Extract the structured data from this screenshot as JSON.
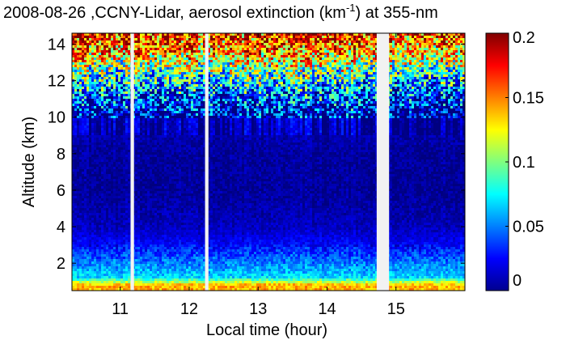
{
  "chart_data": {
    "type": "heatmap",
    "title_date": "2008-08-26",
    "title_main": " ,CCNY-Lidar, aerosol extinction (km",
    "title_sup": "-1",
    "title_tail": ") at 355-nm",
    "xlabel": "Local time (hour)",
    "ylabel": "Altitude (km)",
    "xlim": [
      10.3,
      16.0
    ],
    "ylim": [
      0.5,
      14.6
    ],
    "xticks": [
      11,
      12,
      13,
      14,
      15
    ],
    "yticks": [
      2,
      4,
      6,
      8,
      10,
      12,
      14
    ],
    "colorbar": {
      "range": [
        0,
        0.2
      ],
      "ticks": [
        0,
        0.05,
        0.1,
        0.15,
        0.2
      ],
      "tick_labels": [
        "0",
        "0.05",
        "0.1",
        "0.15",
        "0.2"
      ],
      "colormap": "jet"
    },
    "data_gaps_hours": [
      [
        11.15,
        11.2
      ],
      [
        12.23,
        12.28
      ],
      [
        14.72,
        14.9
      ]
    ],
    "profile": [
      {
        "altitude_km": 0.8,
        "extinction": 0.14
      },
      {
        "altitude_km": 1.2,
        "extinction": 0.07
      },
      {
        "altitude_km": 2.0,
        "extinction": 0.05
      },
      {
        "altitude_km": 3.0,
        "extinction": 0.025
      },
      {
        "altitude_km": 4.0,
        "extinction": 0.012
      },
      {
        "altitude_km": 6.0,
        "extinction": 0.005
      },
      {
        "altitude_km": 8.0,
        "extinction": 0.006
      },
      {
        "altitude_km": 10.0,
        "extinction": 0.012
      },
      {
        "altitude_km": 11.5,
        "extinction": 0.05
      },
      {
        "altitude_km": 12.5,
        "extinction": 0.09
      },
      {
        "altitude_km": 13.5,
        "extinction": 0.14
      },
      {
        "altitude_km": 14.5,
        "extinction": 0.17
      }
    ]
  }
}
